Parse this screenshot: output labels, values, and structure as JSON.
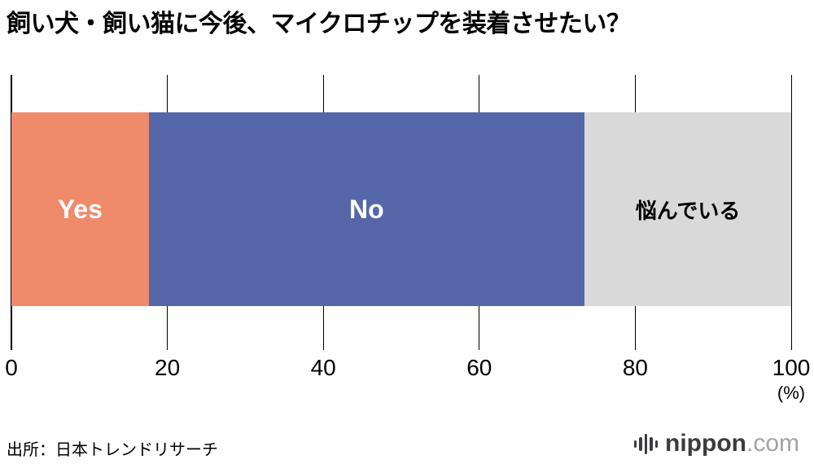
{
  "title": "飼い犬・飼い猫に今後、マイクロチップを装着させたい？",
  "chart_data": {
    "type": "bar",
    "orientation": "horizontal-stacked",
    "title": "飼い犬・飼い猫に今後、マイクロチップを装着させたい？",
    "categories": [
      "Yes",
      "No",
      "悩んでいる"
    ],
    "values": [
      17.6,
      55.9,
      26.5
    ],
    "segments": [
      {
        "label": "Yes",
        "value": 17.6,
        "color": "#ef8a6b",
        "text_color": "#ffffff"
      },
      {
        "label": "No",
        "value": 55.9,
        "color": "#5567a8",
        "text_color": "#ffffff"
      },
      {
        "label": "悩んでいる",
        "value": 26.5,
        "color": "#d9d9d9",
        "text_color": "#000000"
      }
    ],
    "x_ticks": [
      0,
      20,
      40,
      60,
      80,
      100
    ],
    "xlim": [
      0,
      100
    ],
    "x_unit": "(%)",
    "grid": true,
    "legend": "none"
  },
  "source": "出所：日本トレンドリサーチ",
  "logo": {
    "icon": "audio-bars-icon",
    "name": "nippon",
    "suffix": ".com"
  }
}
